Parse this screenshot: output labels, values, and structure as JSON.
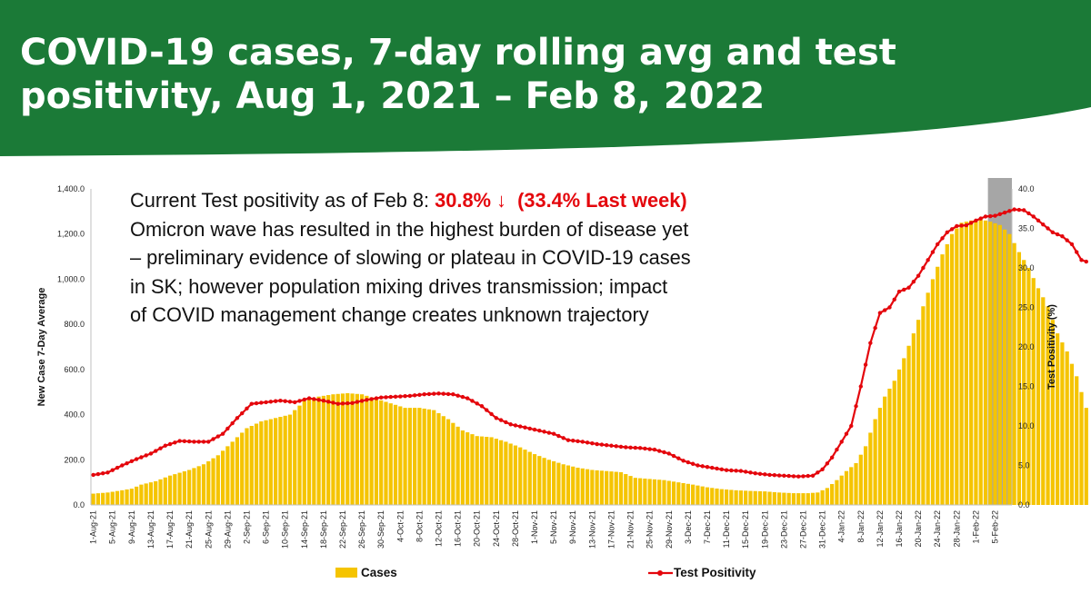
{
  "header": {
    "title": "COVID-19 cases, 7-day rolling avg and test positivity, Aug 1, 2021 – Feb 8, 2022",
    "background_color": "#1b7a37"
  },
  "annotation": {
    "line1_prefix": "Current Test positivity as of Feb 8: ",
    "line1_value": "30.8% ↓",
    "line1_last_week": "(33.4% Last week)",
    "line2": "Omicron wave has resulted in the highest burden of disease yet",
    "line3": "– preliminary evidence of slowing or plateau in COVID-19 cases",
    "line4": "in SK; however population mixing drives transmission; impact",
    "line5": "of COVID management change creates unknown trajectory",
    "highlight_color": "#e4060c"
  },
  "chart_data": {
    "type": "bar",
    "start_date": "1-Aug-21",
    "xlabel": "",
    "ylabel": "New Case 7-Day Average",
    "y2label": "Test Positivity (%)",
    "ylim": [
      0,
      1400
    ],
    "y2lim": [
      0,
      40
    ],
    "y_ticks": [
      "0.0",
      "200.0",
      "400.0",
      "600.0",
      "800.0",
      "1,000.0",
      "1,200.0",
      "1,400.0"
    ],
    "y2_ticks": [
      "0.0",
      "5.0",
      "10.0",
      "15.0",
      "20.0",
      "25.0",
      "30.0",
      "35.0",
      "40.0"
    ],
    "x_tick_labels": [
      "1-Aug-21",
      "5-Aug-21",
      "9-Aug-21",
      "13-Aug-21",
      "17-Aug-21",
      "21-Aug-21",
      "25-Aug-21",
      "29-Aug-21",
      "2-Sep-21",
      "6-Sep-21",
      "10-Sep-21",
      "14-Sep-21",
      "18-Sep-21",
      "22-Sep-21",
      "26-Sep-21",
      "30-Sep-21",
      "4-Oct-21",
      "8-Oct-21",
      "12-Oct-21",
      "16-Oct-21",
      "20-Oct-21",
      "24-Oct-21",
      "28-Oct-21",
      "1-Nov-21",
      "5-Nov-21",
      "9-Nov-21",
      "13-Nov-21",
      "17-Nov-21",
      "21-Nov-21",
      "25-Nov-21",
      "29-Nov-21",
      "3-Dec-21",
      "7-Dec-21",
      "11-Dec-21",
      "15-Dec-21",
      "19-Dec-21",
      "23-Dec-21",
      "27-Dec-21",
      "31-Dec-21",
      "4-Jan-22",
      "8-Jan-22",
      "12-Jan-22",
      "16-Jan-22",
      "20-Jan-22",
      "24-Jan-22",
      "28-Jan-22",
      "1-Feb-22",
      "5-Feb-22"
    ],
    "grid": false,
    "legend_position": "bottom",
    "shaded_region": {
      "from": "4-Feb-22",
      "to": "8-Feb-22",
      "color": "#a6a6a6"
    },
    "series": [
      {
        "name": "Cases",
        "type": "bar",
        "color": "#f5c400",
        "axis": "left",
        "keypoints": [
          [
            0,
            50
          ],
          [
            3,
            55
          ],
          [
            6,
            65
          ],
          [
            8,
            72
          ],
          [
            10,
            90
          ],
          [
            13,
            105
          ],
          [
            16,
            130
          ],
          [
            20,
            155
          ],
          [
            23,
            180
          ],
          [
            26,
            220
          ],
          [
            29,
            280
          ],
          [
            32,
            340
          ],
          [
            35,
            370
          ],
          [
            38,
            385
          ],
          [
            41,
            400
          ],
          [
            44,
            460
          ],
          [
            47,
            480
          ],
          [
            50,
            490
          ],
          [
            53,
            495
          ],
          [
            56,
            490
          ],
          [
            59,
            470
          ],
          [
            62,
            450
          ],
          [
            65,
            430
          ],
          [
            68,
            430
          ],
          [
            71,
            420
          ],
          [
            74,
            380
          ],
          [
            77,
            330
          ],
          [
            80,
            305
          ],
          [
            83,
            300
          ],
          [
            86,
            280
          ],
          [
            89,
            255
          ],
          [
            92,
            225
          ],
          [
            95,
            200
          ],
          [
            98,
            180
          ],
          [
            101,
            165
          ],
          [
            104,
            155
          ],
          [
            107,
            150
          ],
          [
            110,
            145
          ],
          [
            113,
            120
          ],
          [
            116,
            115
          ],
          [
            119,
            110
          ],
          [
            122,
            100
          ],
          [
            125,
            90
          ],
          [
            128,
            78
          ],
          [
            131,
            70
          ],
          [
            134,
            65
          ],
          [
            137,
            62
          ],
          [
            140,
            60
          ],
          [
            143,
            55
          ],
          [
            146,
            52
          ],
          [
            149,
            52
          ],
          [
            151,
            55
          ],
          [
            153,
            75
          ],
          [
            155,
            110
          ],
          [
            157,
            150
          ],
          [
            159,
            185
          ],
          [
            161,
            260
          ],
          [
            163,
            380
          ],
          [
            165,
            480
          ],
          [
            167,
            550
          ],
          [
            169,
            650
          ],
          [
            171,
            760
          ],
          [
            173,
            880
          ],
          [
            175,
            1000
          ],
          [
            177,
            1110
          ],
          [
            179,
            1200
          ],
          [
            181,
            1250
          ],
          [
            183,
            1260
          ],
          [
            185,
            1265
          ],
          [
            187,
            1255
          ],
          [
            189,
            1240
          ],
          [
            191,
            1200
          ],
          [
            193,
            1120
          ],
          [
            195,
            1050
          ],
          [
            197,
            960
          ],
          [
            199,
            880
          ],
          [
            201,
            760
          ],
          [
            203,
            680
          ],
          [
            205,
            570
          ],
          [
            207,
            430
          ]
        ]
      },
      {
        "name": "Test Positivity",
        "type": "line",
        "color": "#e4060c",
        "axis": "right",
        "keypoints": [
          [
            0,
            3.8
          ],
          [
            3,
            4.1
          ],
          [
            6,
            5.0
          ],
          [
            9,
            5.8
          ],
          [
            12,
            6.5
          ],
          [
            15,
            7.5
          ],
          [
            18,
            8.1
          ],
          [
            21,
            8.0
          ],
          [
            24,
            8.0
          ],
          [
            27,
            9.0
          ],
          [
            30,
            11.0
          ],
          [
            33,
            12.8
          ],
          [
            36,
            13.0
          ],
          [
            39,
            13.2
          ],
          [
            42,
            13.0
          ],
          [
            45,
            13.5
          ],
          [
            48,
            13.2
          ],
          [
            51,
            12.8
          ],
          [
            54,
            12.9
          ],
          [
            57,
            13.3
          ],
          [
            60,
            13.6
          ],
          [
            63,
            13.7
          ],
          [
            66,
            13.8
          ],
          [
            69,
            14.0
          ],
          [
            72,
            14.1
          ],
          [
            75,
            14.0
          ],
          [
            78,
            13.5
          ],
          [
            81,
            12.5
          ],
          [
            84,
            11.0
          ],
          [
            87,
            10.2
          ],
          [
            90,
            9.8
          ],
          [
            93,
            9.4
          ],
          [
            96,
            9.0
          ],
          [
            99,
            8.2
          ],
          [
            102,
            8.0
          ],
          [
            105,
            7.7
          ],
          [
            108,
            7.5
          ],
          [
            111,
            7.3
          ],
          [
            114,
            7.2
          ],
          [
            117,
            7.0
          ],
          [
            120,
            6.5
          ],
          [
            123,
            5.6
          ],
          [
            126,
            5.0
          ],
          [
            129,
            4.7
          ],
          [
            132,
            4.4
          ],
          [
            135,
            4.3
          ],
          [
            138,
            4.0
          ],
          [
            141,
            3.8
          ],
          [
            144,
            3.7
          ],
          [
            147,
            3.6
          ],
          [
            150,
            3.7
          ],
          [
            152,
            4.5
          ],
          [
            154,
            6.0
          ],
          [
            156,
            8.0
          ],
          [
            158,
            10.0
          ],
          [
            160,
            15.0
          ],
          [
            162,
            20.5
          ],
          [
            164,
            24.3
          ],
          [
            166,
            25.0
          ],
          [
            168,
            27.0
          ],
          [
            170,
            27.5
          ],
          [
            172,
            29.0
          ],
          [
            174,
            31.0
          ],
          [
            176,
            33.0
          ],
          [
            178,
            34.5
          ],
          [
            180,
            35.3
          ],
          [
            182,
            35.4
          ],
          [
            184,
            36.0
          ],
          [
            186,
            36.5
          ],
          [
            188,
            36.6
          ],
          [
            190,
            37.0
          ],
          [
            192,
            37.4
          ],
          [
            194,
            37.3
          ],
          [
            196,
            36.5
          ],
          [
            198,
            35.5
          ],
          [
            200,
            34.5
          ],
          [
            202,
            34.0
          ],
          [
            204,
            33.0
          ],
          [
            206,
            31.0
          ],
          [
            207,
            30.8
          ]
        ]
      }
    ]
  }
}
